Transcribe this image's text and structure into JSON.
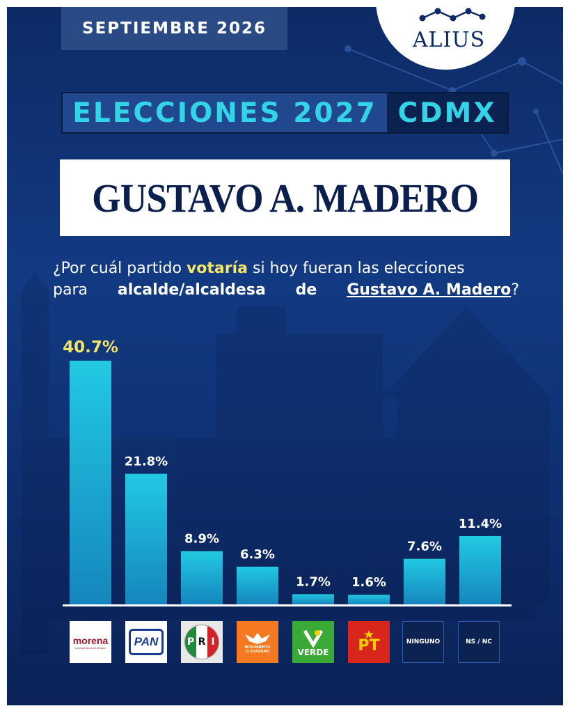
{
  "header": {
    "date": "SEPTIEMBRE 2026",
    "brand": "ALIUS",
    "title_main": "ELECCIONES 2027",
    "title_region": "CDMX",
    "municipality": "GUSTAVO A. MADERO"
  },
  "question": {
    "p1": "¿Por cuál partido ",
    "p2": "votaría",
    "p3": " si hoy fueran las elecciones",
    "p4": "para",
    "p5": "alcalde/alcaldesa",
    "p6": "de",
    "p7": "Gustavo A. Madero",
    "p8": "?"
  },
  "colors": {
    "bar_top": "#22c9e3",
    "bar_bottom": "#1586bd",
    "highlight": "#f3e46b",
    "accent": "#33d3e8"
  },
  "chart_data": {
    "type": "bar",
    "categories": [
      "MORENA",
      "PAN",
      "PRI",
      "MC",
      "VERDE",
      "PT",
      "NINGUNO",
      "NS / NC"
    ],
    "values": [
      40.7,
      21.8,
      8.9,
      6.3,
      1.7,
      1.6,
      7.6,
      11.4
    ],
    "value_labels": [
      "40.7%",
      "21.8%",
      "8.9%",
      "6.3%",
      "1.7%",
      "1.6%",
      "7.6%",
      "11.4%"
    ],
    "ylim": [
      0,
      40.7
    ],
    "highlight_index": 0,
    "title": "",
    "xlabel": "",
    "ylabel": ""
  },
  "party_logos": {
    "morena": {
      "name": "morena",
      "tagline": "La esperanza de México"
    },
    "pan": {
      "name": "PAN"
    },
    "pri": {
      "letters": [
        "P",
        "R",
        "I"
      ]
    },
    "mc": {
      "line1": "MOVIMIENTO",
      "line2": "CIUDADANO"
    },
    "verde": {
      "name": "VERDE"
    },
    "pt": {
      "name": "PT"
    },
    "ninguno": {
      "name": "NINGUNO"
    },
    "nsnc": {
      "name": "NS / NC"
    }
  }
}
